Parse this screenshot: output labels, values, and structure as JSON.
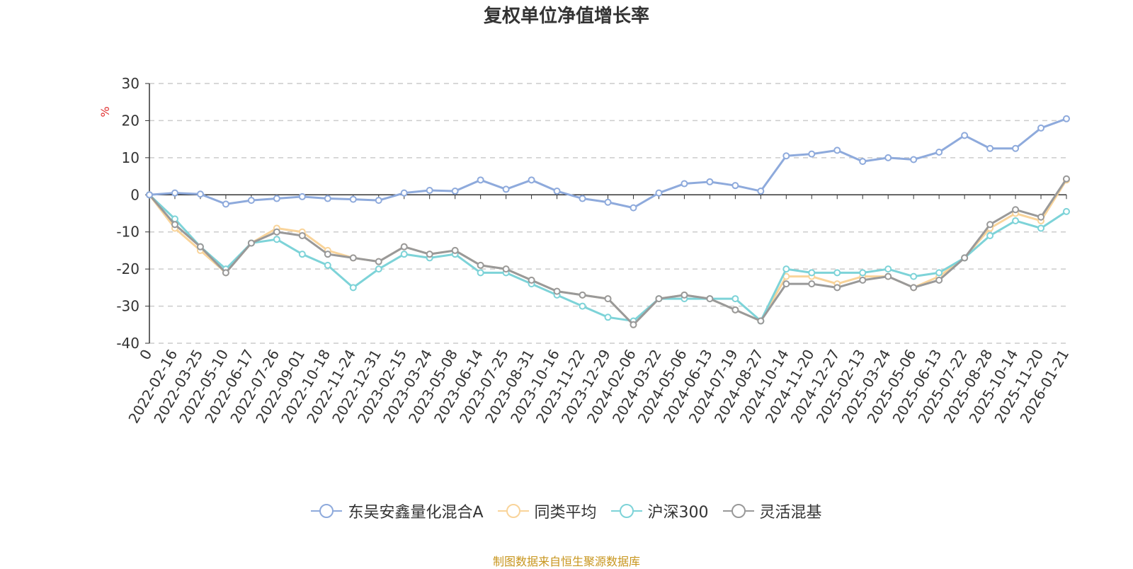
{
  "chart_data": {
    "type": "line",
    "title": "复权单位净值增长率",
    "ylabel": "%",
    "ylim": [
      -40,
      30
    ],
    "yticks": [
      30,
      20,
      10,
      0,
      -10,
      -20,
      -30,
      -40
    ],
    "grid": true,
    "legend_position": "bottom",
    "x_tick_labels": [
      "0",
      "2022-02-16",
      "2022-03-25",
      "2022-05-10",
      "2022-06-17",
      "2022-07-26",
      "2022-09-01",
      "2022-10-18",
      "2022-11-24",
      "2022-12-31",
      "2023-02-15",
      "2023-03-24",
      "2023-05-08",
      "2023-06-14",
      "2023-07-25",
      "2023-08-31",
      "2023-10-16",
      "2023-11-22",
      "2023-12-29",
      "2024-02-06",
      "2024-03-22",
      "2024-05-06",
      "2024-06-13",
      "2024-07-19",
      "2024-08-27",
      "2024-10-14",
      "2024-11-20",
      "2024-12-27",
      "2025-02-13",
      "2025-03-24",
      "2025-05-06",
      "2025-06-13",
      "2025-07-22",
      "2025-08-28",
      "2025-10-14",
      "2025-11-20",
      "2026-01-21"
    ],
    "series": [
      {
        "name": "东吴安鑫量化混合A",
        "color": "#8eaadc",
        "values": [
          0,
          0.5,
          0.2,
          -2.5,
          -1.5,
          -1,
          -0.5,
          -1,
          -1.2,
          -1.5,
          0.5,
          1.2,
          1,
          4,
          1.5,
          4,
          1,
          -1,
          -2,
          -3.5,
          0.5,
          3,
          3.5,
          2.5,
          1,
          10.5,
          11,
          12,
          9,
          10,
          9.5,
          11.5,
          16,
          12.5,
          12.5,
          18,
          20.5
        ]
      },
      {
        "name": "同类平均",
        "color": "#f9d49a",
        "values": [
          0,
          -9,
          -15,
          -21,
          -13,
          -9,
          -10,
          -15,
          -17,
          -18,
          -14,
          -16,
          -15,
          -19,
          -20,
          -23,
          -26,
          -27,
          -28,
          -35,
          -28,
          -27,
          -28,
          -31,
          -34,
          -22,
          -22,
          -24,
          -22,
          -22,
          -25,
          -22,
          -17,
          -9,
          -5,
          -7,
          4
        ]
      },
      {
        "name": "沪深300",
        "color": "#7dd3d8",
        "values": [
          0,
          -6.5,
          -14,
          -20,
          -13,
          -12,
          -16,
          -19,
          -25,
          -20,
          -16,
          -17,
          -16,
          -21,
          -21,
          -24,
          -27,
          -30,
          -33,
          -34,
          -28,
          -28,
          -28,
          -28,
          -34,
          -20,
          -21,
          -21,
          -21,
          -20,
          -22,
          -21,
          -17,
          -11,
          -7,
          -9,
          -4.5
        ]
      },
      {
        "name": "灵活混基",
        "color": "#999999",
        "values": [
          0,
          -8,
          -14,
          -21,
          -13,
          -10,
          -11,
          -16,
          -17,
          -18,
          -14,
          -16,
          -15,
          -19,
          -20,
          -23,
          -26,
          -27,
          -28,
          -35,
          -28,
          -27,
          -28,
          -31,
          -34,
          -24,
          -24,
          -25,
          -23,
          -22,
          -25,
          -23,
          -17,
          -8,
          -4,
          -6,
          4.3
        ]
      }
    ]
  },
  "source_text": "制图数据来自恒生聚源数据库"
}
